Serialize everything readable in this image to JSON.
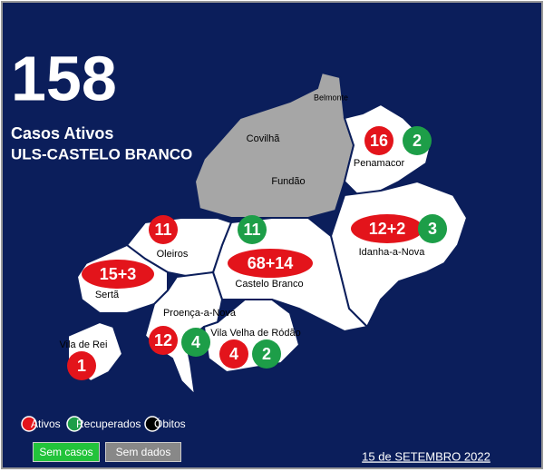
{
  "header": {
    "total": 158,
    "subtitle": "Casos Ativos",
    "region": "ULS-CASTELO BRANCO"
  },
  "regions": [
    {
      "name": "Covilhã"
    },
    {
      "name": "Fundão"
    },
    {
      "name": "Belmonte"
    },
    {
      "name": "Penamacor",
      "active": 16,
      "recovered": 2
    },
    {
      "name": "Idanha-a-Nova",
      "active": "12+2",
      "recovered": 3
    },
    {
      "name": "Castelo Branco",
      "active": "68+14",
      "recovered": 11
    },
    {
      "name": "Oleiros",
      "active": 11
    },
    {
      "name": "Sertã",
      "active": "15+3"
    },
    {
      "name": "Proença-a-Nova",
      "active": 12,
      "recovered": 4
    },
    {
      "name": "Vila Velha de Ródão",
      "active": 4,
      "recovered": 2
    },
    {
      "name": "Vila de Rei",
      "active": 1
    }
  ],
  "legend": [
    "Ativos",
    "Recuperados",
    "Óbitos"
  ],
  "buttons": [
    "Sem casos",
    "Sem dados"
  ],
  "date": "15 de SETEMBRO 2022"
}
